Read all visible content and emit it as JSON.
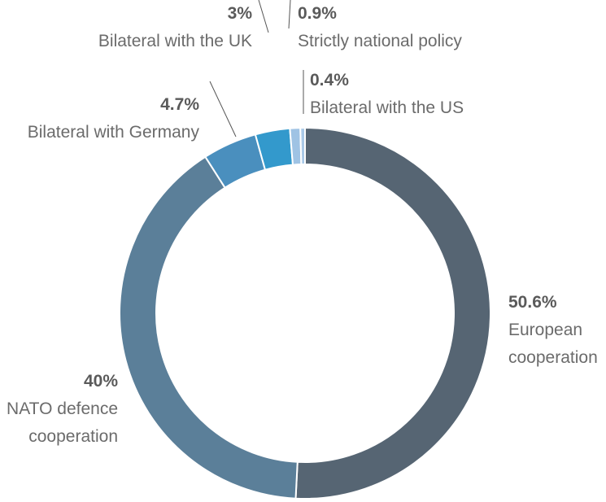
{
  "chart_data": {
    "type": "pie",
    "categories": [
      "European cooperation",
      "NATO defence cooperation",
      "Bilateral with Germany",
      "Bilateral with the UK",
      "Strictly national policy",
      "Bilateral with the US"
    ],
    "values": [
      50.6,
      40,
      4.7,
      3,
      0.9,
      0.4
    ],
    "value_labels": [
      "50.6%",
      "40%",
      "4.7%",
      "3%",
      "0.9%",
      "0.4%"
    ],
    "colors": [
      "#566573",
      "#5b7f99",
      "#4a8fbe",
      "#3399cc",
      "#9fc3e4",
      "#a9c9e8"
    ]
  }
}
